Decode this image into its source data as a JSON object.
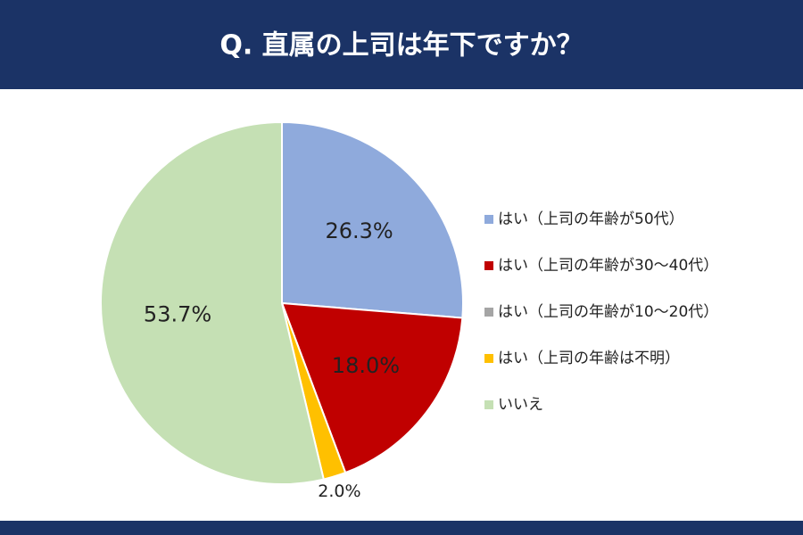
{
  "chart_data": {
    "type": "pie",
    "title": "Q. 直属の上司は年下ですか？",
    "categories": [
      "はい（上司の年齢が50代）",
      "はい（上司の年齢が30〜40代）",
      "はい（上司の年齢が10〜20代）",
      "はい（上司の年齢は不明）",
      "いいえ"
    ],
    "values": [
      26.3,
      18.0,
      0,
      2.0,
      53.7
    ],
    "value_labels": [
      "26.3%",
      "18.0%",
      null,
      "2.0%",
      "53.7%"
    ],
    "colors": [
      "#8faadc",
      "#c00000",
      "#a5a5a5",
      "#ffc000",
      "#c5e0b4"
    ],
    "legend": "right"
  }
}
